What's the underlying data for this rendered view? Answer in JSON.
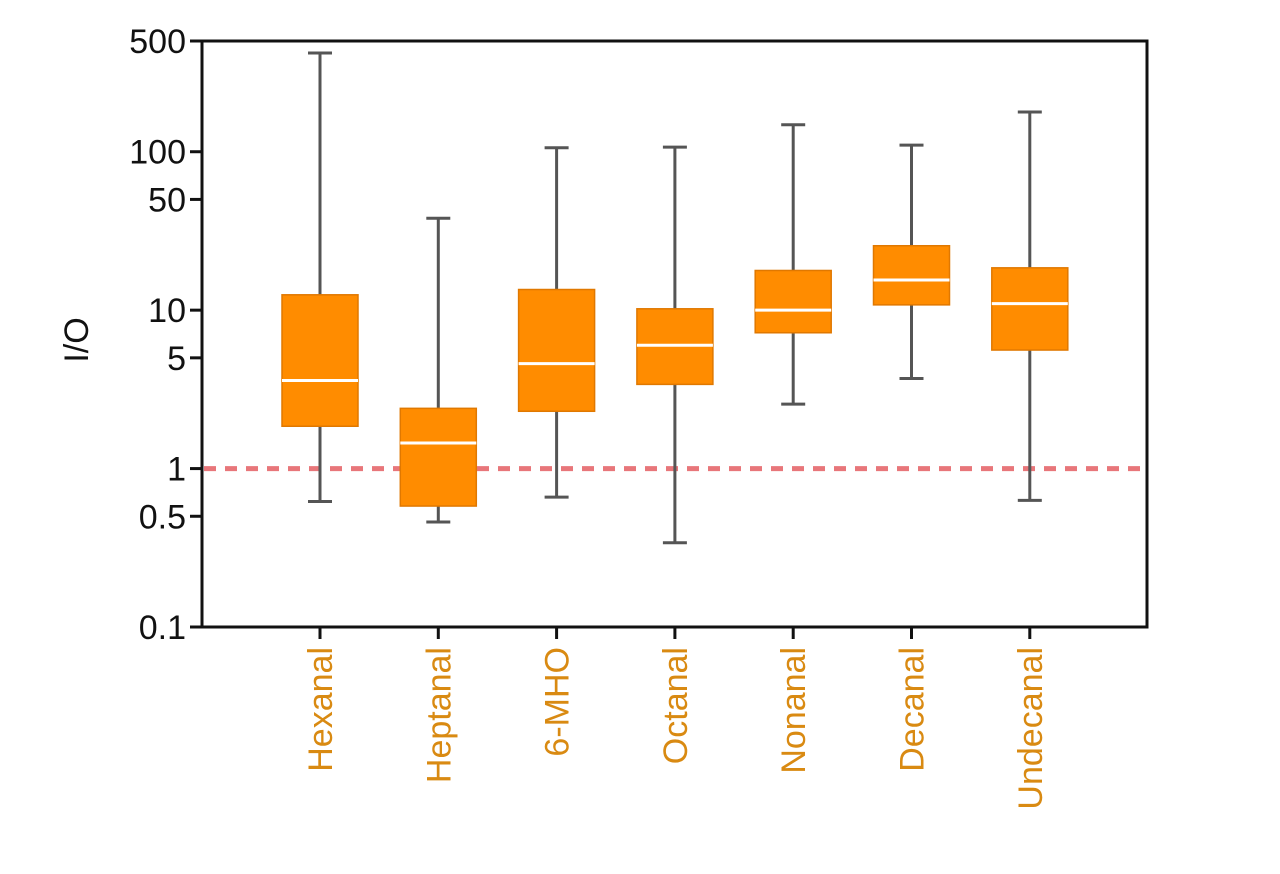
{
  "chart_data": {
    "type": "boxplot",
    "title": "",
    "ylabel": "I/O",
    "xlabel": "",
    "yscale": "log",
    "ylim": [
      0.1,
      500
    ],
    "yticks": [
      {
        "value": 500,
        "label": "500"
      },
      {
        "value": 100,
        "label": "100"
      },
      {
        "value": 50,
        "label": "50"
      },
      {
        "value": 10,
        "label": "10"
      },
      {
        "value": 5,
        "label": "5"
      },
      {
        "value": 1,
        "label": "1"
      },
      {
        "value": 0.5,
        "label": "0.5"
      },
      {
        "value": 0.1,
        "label": "0.1"
      }
    ],
    "reference_line": {
      "value": 1,
      "style": "dashed",
      "color": "#E8767A"
    },
    "box_color": "#FF8C00",
    "median_color": "#FFFFFF",
    "whisker_color": "#555555",
    "label_color": "#D98A12",
    "categories": [
      "Hexanal",
      "Heptanal",
      "6-MHO",
      "Octanal",
      "Nonanal",
      "Decanal",
      "Undecanal"
    ],
    "boxes": [
      {
        "min": 0.62,
        "q1": 1.85,
        "median": 3.6,
        "q3": 12.5,
        "max": 420
      },
      {
        "min": 0.46,
        "q1": 0.58,
        "median": 1.45,
        "q3": 2.4,
        "max": 38
      },
      {
        "min": 0.66,
        "q1": 2.3,
        "median": 4.6,
        "q3": 13.5,
        "max": 106
      },
      {
        "min": 0.34,
        "q1": 3.4,
        "median": 6.0,
        "q3": 10.2,
        "max": 107
      },
      {
        "min": 2.55,
        "q1": 7.2,
        "median": 10.0,
        "q3": 17.8,
        "max": 148
      },
      {
        "min": 3.7,
        "q1": 10.8,
        "median": 15.5,
        "q3": 25.5,
        "max": 110
      },
      {
        "min": 0.63,
        "q1": 5.6,
        "median": 11.0,
        "q3": 18.5,
        "max": 178
      }
    ]
  }
}
